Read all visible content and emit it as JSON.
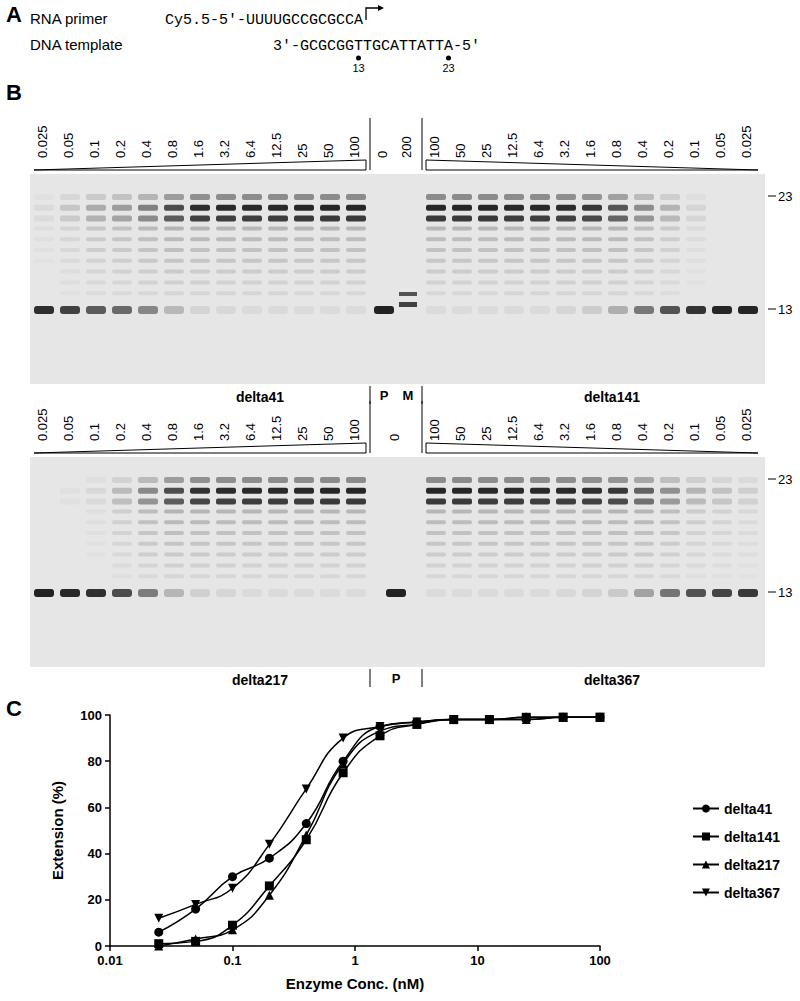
{
  "panel_a": {
    "label": "A",
    "primer_label": "RNA primer",
    "primer": "Cy5.5-5'-UUUUGCCGCGCCA",
    "template_label": "DNA template",
    "template": "3'-GCGCGGTTGCATTATTA-5'",
    "positions": [
      13,
      23
    ]
  },
  "panel_b": {
    "label": "B",
    "gels": [
      {
        "lanes_left": [
          0.025,
          0.05,
          0.1,
          0.2,
          0.4,
          0.8,
          1.6,
          3.2,
          6.4,
          12.5,
          25,
          50,
          100
        ],
        "lanes_middle": [
          0,
          200
        ],
        "lanes_right": [
          100,
          50,
          25,
          12.5,
          6.4,
          3.2,
          1.6,
          0.8,
          0.4,
          0.2,
          0.1,
          0.05,
          0.025
        ],
        "middle_labels": [
          "P",
          "M"
        ],
        "left_name": "delta41",
        "right_name": "delta141",
        "markers": [
          23,
          13
        ]
      },
      {
        "lanes_left": [
          0.025,
          0.05,
          0.1,
          0.2,
          0.4,
          0.8,
          1.6,
          3.2,
          6.4,
          12.5,
          25,
          50,
          100
        ],
        "lanes_middle": [
          0
        ],
        "lanes_right": [
          100,
          50,
          25,
          12.5,
          6.4,
          3.2,
          1.6,
          0.8,
          0.4,
          0.2,
          0.1,
          0.05,
          0.025
        ],
        "middle_labels": [
          "P"
        ],
        "left_name": "delta217",
        "right_name": "delta367",
        "markers": [
          23,
          13
        ]
      }
    ]
  },
  "panel_c": {
    "label": "C"
  },
  "chart_data": {
    "type": "line",
    "xlabel": "Enzyme Conc. (nM)",
    "ylabel": "Extension (%)",
    "x": [
      0.025,
      0.05,
      0.1,
      0.2,
      0.4,
      0.8,
      1.6,
      3.2,
      6.4,
      12.5,
      25,
      50,
      100
    ],
    "log": "x",
    "xlim": [
      0.01,
      100
    ],
    "xticks": [
      0.01,
      0.1,
      1,
      10,
      100
    ],
    "ylim": [
      0,
      100
    ],
    "yticks": [
      0,
      20,
      40,
      60,
      80,
      100
    ],
    "grid": false,
    "legend": "right",
    "series": [
      {
        "name": "delta41",
        "color": "#000000",
        "marker": "circle",
        "values": [
          6,
          16,
          30,
          38,
          53,
          80,
          95,
          97,
          98,
          98,
          99,
          99,
          99
        ]
      },
      {
        "name": "delta141",
        "color": "#000000",
        "marker": "square",
        "values": [
          1,
          2,
          9,
          26,
          46,
          75,
          91,
          96,
          98,
          98,
          99,
          99,
          99
        ]
      },
      {
        "name": "delta217",
        "color": "#000000",
        "marker": "triangle",
        "values": [
          0,
          3,
          7,
          22,
          48,
          79,
          93,
          96,
          98,
          98,
          98,
          99,
          99
        ]
      },
      {
        "name": "delta367",
        "color": "#000000",
        "marker": "triangle-down",
        "values": [
          12,
          18,
          25,
          44,
          68,
          90,
          95,
          97,
          98,
          98,
          98,
          99,
          99
        ]
      }
    ]
  }
}
